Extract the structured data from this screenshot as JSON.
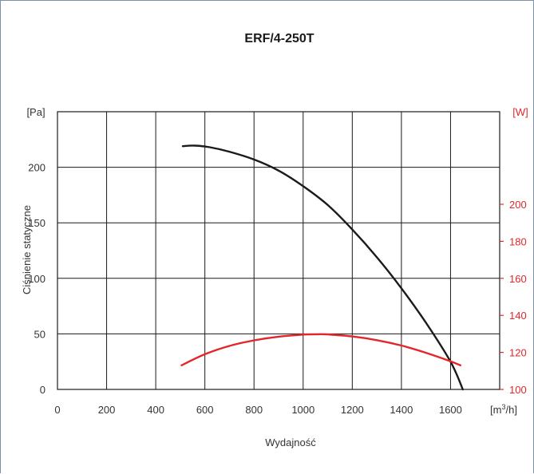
{
  "chart_data": {
    "type": "line",
    "title": "ERF/4-250T",
    "xlabel": "Wydajność",
    "xunit_base": "[m",
    "xunit_sup": "3",
    "xunit_tail": "/h]",
    "ylabel": "Ciśnienie statyczne",
    "yunit": "[Pa]",
    "y2unit": "[W]",
    "xlim": [
      0,
      1800
    ],
    "ylim": [
      0,
      250
    ],
    "y2lim": [
      100,
      250
    ],
    "x_ticks": [
      0,
      200,
      400,
      600,
      800,
      1000,
      1200,
      1400,
      1600
    ],
    "y_ticks": [
      0,
      50,
      100,
      150,
      200
    ],
    "y2_ticks": [
      100,
      120,
      140,
      160,
      180,
      200
    ],
    "grid": true,
    "colors": {
      "pressure": "#1a1a1a",
      "power": "#e3262b",
      "grid": "#1a1a1a",
      "right_axis": "#e3262b"
    },
    "series": [
      {
        "axis": "left",
        "color": "#1a1a1a",
        "x": [
          510,
          560,
          620,
          700,
          800,
          900,
          1000,
          1100,
          1200,
          1300,
          1400,
          1500,
          1600,
          1650
        ],
        "y": [
          219,
          219.5,
          218,
          214,
          207,
          197,
          183,
          166,
          144,
          119,
          91,
          60,
          25,
          0
        ]
      },
      {
        "axis": "right",
        "color": "#e3262b",
        "x": [
          505,
          600,
          700,
          800,
          900,
          1000,
          1060,
          1100,
          1200,
          1300,
          1400,
          1500,
          1600,
          1640
        ],
        "y": [
          113,
          119,
          123.5,
          126.5,
          128.5,
          129.6,
          129.8,
          129.7,
          128.6,
          126.6,
          123.7,
          119.8,
          115.2,
          113
        ]
      }
    ]
  }
}
